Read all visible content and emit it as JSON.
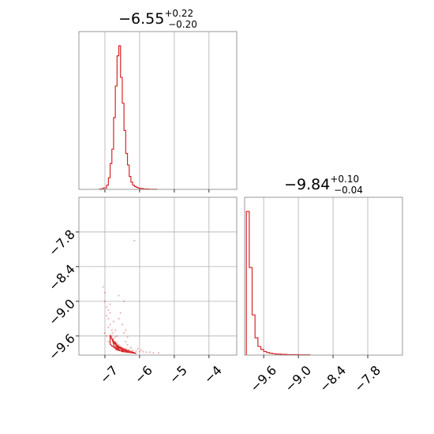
{
  "chart_data": {
    "type": "corner",
    "colors": {
      "series": "#d62728",
      "frame": "#7f7f7f",
      "grid": "#b0b0b0"
    },
    "grid": true,
    "parameters": [
      {
        "summary": {
          "median": "−6.55",
          "upper": "+0.22",
          "lower": "−0.20"
        },
        "range": [
          -7.75,
          -3.2
        ]
      },
      {
        "summary": {
          "median": "−9.84",
          "upper": "+0.10",
          "lower": "−0.04"
        },
        "range": [
          -9.93,
          -7.2
        ]
      }
    ],
    "marginal_0": {
      "type": "histogram-step",
      "bin_edges": [
        -7.15,
        -7.05,
        -6.95,
        -6.9,
        -6.85,
        -6.8,
        -6.75,
        -6.7,
        -6.65,
        -6.6,
        -6.55,
        -6.5,
        -6.45,
        -6.4,
        -6.35,
        -6.3,
        -6.25,
        -6.2,
        -6.15,
        -6.1,
        -6.05,
        -6.0,
        -5.9,
        -5.75,
        -5.5
      ],
      "counts": [
        0.3,
        1,
        3,
        8,
        18,
        28,
        50,
        72,
        93,
        100,
        78,
        60,
        41,
        25,
        17,
        9,
        5,
        3,
        2,
        1.4,
        1,
        0.6,
        0.3,
        0.1
      ]
    },
    "marginal_1": {
      "type": "histogram-step",
      "bin_edges": [
        -9.9,
        -9.85,
        -9.8,
        -9.75,
        -9.7,
        -9.65,
        -9.6,
        -9.55,
        -9.5,
        -9.45,
        -9.4,
        -9.3,
        -9.2,
        -9.0,
        -8.8
      ],
      "counts": [
        100,
        61,
        28,
        12,
        6,
        4,
        2.5,
        1.8,
        1.3,
        1,
        0.7,
        0.5,
        0.3,
        0.15
      ]
    },
    "joint": {
      "xticks": [
        -7,
        -6,
        -5,
        -4
      ],
      "xtick_labels": [
        "−7",
        "−6",
        "−5",
        "−4"
      ],
      "yticks": [
        -7.8,
        -8.4,
        -9.0,
        -9.6
      ],
      "ytick_labels": [
        "−7.8",
        "−8.4",
        "−9.0",
        "−9.6"
      ],
      "points": [
        [
          -7.0,
          -9.0
        ],
        [
          -7.0,
          -8.85
        ],
        [
          -6.95,
          -9.1
        ],
        [
          -6.95,
          -9.25
        ],
        [
          -6.9,
          -9.3
        ],
        [
          -6.9,
          -9.45
        ],
        [
          -6.85,
          -9.2
        ],
        [
          -6.85,
          -9.4
        ],
        [
          -6.8,
          -9.5
        ],
        [
          -6.8,
          -9.6
        ],
        [
          -6.78,
          -9.55
        ],
        [
          -6.75,
          -9.65
        ],
        [
          -6.7,
          -9.62
        ],
        [
          -6.7,
          -9.7
        ],
        [
          -6.65,
          -9.72
        ],
        [
          -6.6,
          -9.75
        ],
        [
          -6.55,
          -9.78
        ],
        [
          -6.5,
          -9.8
        ],
        [
          -6.4,
          -9.82
        ],
        [
          -6.3,
          -9.84
        ],
        [
          -6.2,
          -9.85
        ],
        [
          -6.1,
          -9.86
        ],
        [
          -6.0,
          -9.87
        ],
        [
          -5.9,
          -9.87
        ],
        [
          -5.8,
          -9.88
        ],
        [
          -5.7,
          -9.88
        ],
        [
          -5.6,
          -9.89
        ],
        [
          -5.45,
          -9.89
        ],
        [
          -6.6,
          -9.3
        ],
        [
          -6.55,
          -9.2
        ],
        [
          -6.5,
          -9.4
        ],
        [
          -6.45,
          -9.0
        ],
        [
          -6.45,
          -9.55
        ],
        [
          -6.4,
          -9.7
        ],
        [
          -6.4,
          -9.5
        ],
        [
          -6.35,
          -9.62
        ],
        [
          -6.35,
          -9.75
        ],
        [
          -6.6,
          -8.9
        ],
        [
          -6.15,
          -7.95
        ],
        [
          -7.05,
          -8.75
        ],
        [
          -6.85,
          -9.05
        ],
        [
          -6.9,
          -9.15
        ],
        [
          -6.75,
          -9.35
        ],
        [
          -6.7,
          -9.5
        ],
        [
          -6.65,
          -9.6
        ],
        [
          -6.95,
          -9.6
        ],
        [
          -6.9,
          -9.7
        ],
        [
          -7.0,
          -9.55
        ],
        [
          -6.8,
          -9.78
        ],
        [
          -6.25,
          -9.8
        ],
        [
          -6.05,
          -9.82
        ],
        [
          -5.95,
          -9.84
        ]
      ],
      "contours": [
        [
          [
            -6.85,
            -9.58
          ],
          [
            -6.75,
            -9.72
          ],
          [
            -6.55,
            -9.8
          ],
          [
            -6.3,
            -9.86
          ],
          [
            -6.1,
            -9.9
          ],
          [
            -6.35,
            -9.88
          ],
          [
            -6.65,
            -9.84
          ],
          [
            -6.85,
            -9.74
          ],
          [
            -6.85,
            -9.58
          ]
        ],
        [
          [
            -6.8,
            -9.64
          ],
          [
            -6.68,
            -9.76
          ],
          [
            -6.5,
            -9.83
          ],
          [
            -6.3,
            -9.88
          ],
          [
            -6.5,
            -9.87
          ],
          [
            -6.72,
            -9.8
          ],
          [
            -6.8,
            -9.64
          ]
        ],
        [
          [
            -6.72,
            -9.7
          ],
          [
            -6.6,
            -9.8
          ],
          [
            -6.45,
            -9.86
          ],
          [
            -6.6,
            -9.85
          ],
          [
            -6.72,
            -9.7
          ]
        ],
        [
          [
            -6.68,
            -9.77
          ],
          [
            -6.58,
            -9.84
          ],
          [
            -6.68,
            -9.83
          ],
          [
            -6.68,
            -9.77
          ]
        ]
      ]
    }
  }
}
